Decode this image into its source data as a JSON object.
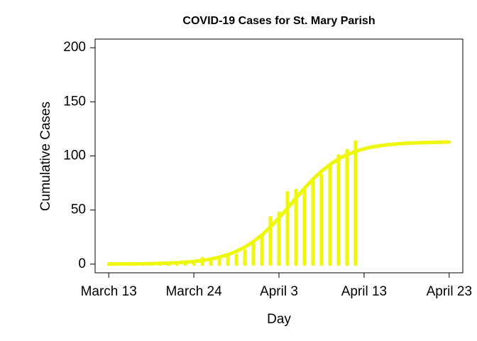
{
  "chart_data": {
    "type": "line",
    "title": "COVID-19 Cases for St. Mary Parish",
    "xlabel": "Day",
    "ylabel": "Cumulative Cases",
    "xlim": [
      -1.6,
      41.6
    ],
    "ylim": [
      -8,
      208
    ],
    "xticks": [
      {
        "value": 0,
        "label": "March 13"
      },
      {
        "value": 10,
        "label": "March 24"
      },
      {
        "value": 20,
        "label": "April 3"
      },
      {
        "value": 30,
        "label": "April 13"
      },
      {
        "value": 40,
        "label": "April 23"
      }
    ],
    "yticks": [
      0,
      50,
      100,
      150,
      200
    ],
    "series": [
      {
        "style": "h",
        "color": "#eef70f",
        "x": [
          0,
          1,
          2,
          3,
          4,
          5,
          6,
          7,
          8,
          9,
          10,
          11,
          12,
          13,
          14,
          15,
          16,
          17,
          18,
          19,
          20,
          21,
          22,
          23,
          24,
          25,
          26,
          27,
          28,
          29
        ],
        "values": [
          0,
          0,
          0,
          0,
          0,
          0,
          1,
          1,
          1,
          2,
          2,
          5,
          4,
          5,
          6,
          8,
          12,
          20,
          27,
          43,
          47,
          66,
          68,
          70,
          76,
          82,
          90,
          100,
          105,
          113
        ]
      },
      {
        "style": "l",
        "color": "#eef70f",
        "x": [
          0,
          1,
          2,
          3,
          4,
          5,
          6,
          7,
          8,
          9,
          10,
          11,
          12,
          13,
          14,
          15,
          16,
          17,
          18,
          19,
          20,
          21,
          22,
          23,
          24,
          25,
          26,
          27,
          28,
          29,
          30,
          31,
          32,
          33,
          34,
          35,
          36,
          37,
          38,
          39,
          40
        ],
        "values": [
          0.09,
          0.12,
          0.17,
          0.24,
          0.34,
          0.49,
          0.68,
          0.95,
          1.3,
          1.8,
          2.48,
          3.42,
          4.7,
          6.4,
          8.8,
          11.8,
          15.8,
          20.8,
          27,
          34.4,
          42.8,
          51.8,
          61.1,
          70.2,
          78.6,
          85.9,
          92.1,
          97.2,
          101.2,
          104.2,
          106.6,
          108.3,
          109.6,
          110.5,
          111.2,
          111.7,
          112.1,
          112.3,
          112.5,
          112.7,
          112.8
        ]
      }
    ]
  }
}
